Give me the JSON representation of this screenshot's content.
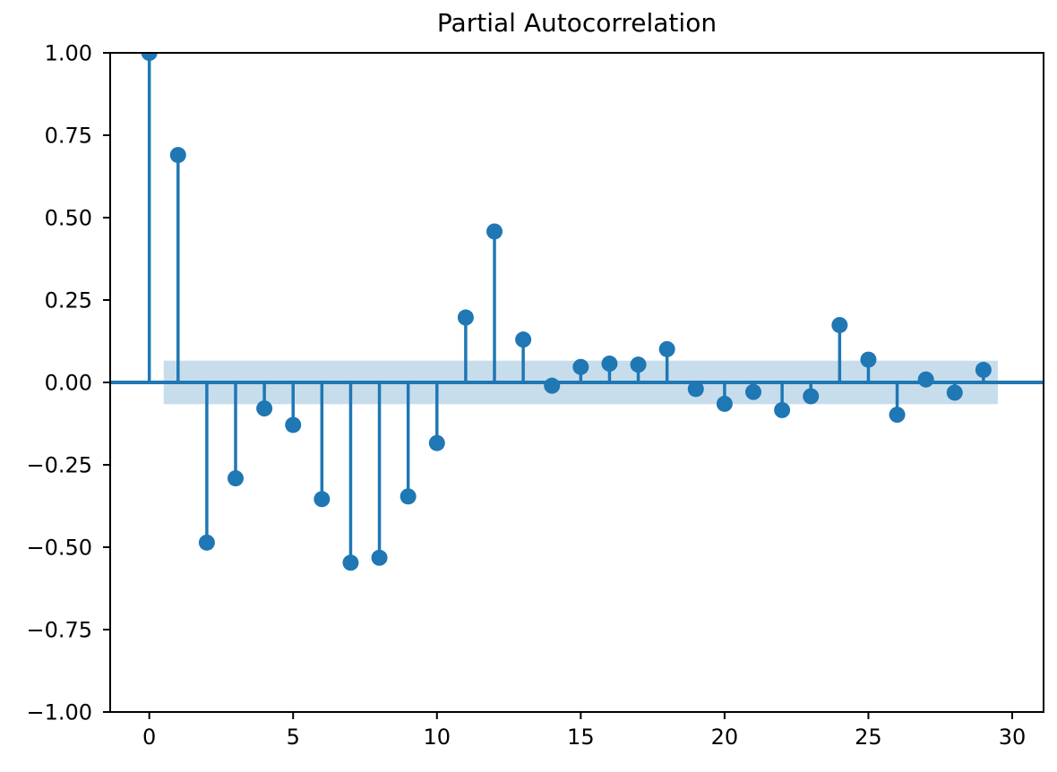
{
  "chart_data": {
    "type": "stem",
    "title": "Partial Autocorrelation",
    "xlabel": "",
    "ylabel": "",
    "x": [
      0,
      1,
      2,
      3,
      4,
      5,
      6,
      7,
      8,
      9,
      10,
      11,
      12,
      13,
      14,
      15,
      16,
      17,
      18,
      19,
      20,
      21,
      22,
      23,
      24,
      25,
      26,
      27,
      28,
      29
    ],
    "values": [
      1.0,
      0.69,
      -0.486,
      -0.291,
      -0.079,
      -0.129,
      -0.354,
      -0.547,
      -0.532,
      -0.346,
      -0.184,
      0.197,
      0.458,
      0.13,
      -0.01,
      0.047,
      0.057,
      0.054,
      0.101,
      -0.02,
      -0.065,
      -0.029,
      -0.084,
      -0.042,
      0.174,
      0.069,
      -0.098,
      0.009,
      -0.031,
      0.038
    ],
    "confidence_interval": 0.066,
    "confidence_band_x_range": [
      0.5,
      29.5
    ],
    "xlim": [
      -1.36,
      31.09
    ],
    "ylim": [
      -1.0,
      1.0
    ],
    "xticks": [
      0,
      5,
      10,
      15,
      20,
      25,
      30
    ],
    "yticks": [
      1.0,
      0.75,
      0.5,
      0.25,
      0.0,
      -0.25,
      -0.5,
      -0.75,
      -1.0
    ],
    "grid": false,
    "legend": null,
    "colors": {
      "stem": "#1f77b4",
      "marker": "#1f77b4",
      "zero_line": "#1f77b4",
      "band_fill": "#1f77b4",
      "band_opacity": 0.25,
      "spine": "#000000",
      "background": "#ffffff"
    }
  }
}
